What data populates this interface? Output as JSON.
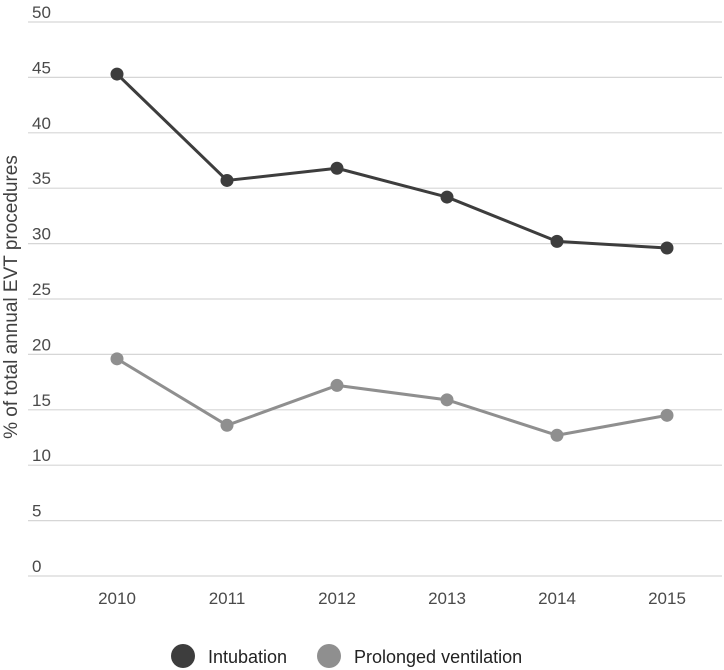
{
  "chart_data": {
    "type": "line",
    "title": "",
    "xlabel": "",
    "ylabel": "% of total annual EVT procedures",
    "x": [
      "2010",
      "2011",
      "2012",
      "2013",
      "2014",
      "2015"
    ],
    "ylim": [
      0,
      50
    ],
    "yticks": [
      0,
      5,
      10,
      15,
      20,
      25,
      30,
      35,
      40,
      45,
      50
    ],
    "grid": true,
    "legend": "bottom-center",
    "series": [
      {
        "name": "Intubation",
        "color": "#3d3d3d",
        "values": [
          45.3,
          35.7,
          36.8,
          34.2,
          30.2,
          29.6
        ]
      },
      {
        "name": "Prolonged ventilation",
        "color": "#8f8f8f",
        "values": [
          19.6,
          13.6,
          17.2,
          15.9,
          12.7,
          14.5
        ]
      }
    ]
  }
}
